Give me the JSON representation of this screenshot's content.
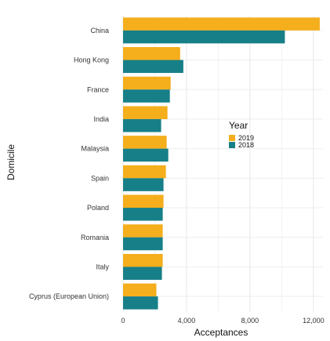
{
  "chart_data": {
    "type": "bar",
    "orientation": "horizontal",
    "categories": [
      "China",
      "Hong Kong",
      "France",
      "India",
      "Malaysia",
      "Spain",
      "Poland",
      "Romania",
      "Italy",
      "Cyprus (European Union)"
    ],
    "series": [
      {
        "name": "2019",
        "color": "#f5ae1c",
        "values": [
          12400,
          3600,
          3000,
          2800,
          2750,
          2700,
          2550,
          2500,
          2500,
          2100
        ]
      },
      {
        "name": "2018",
        "color": "#177f87",
        "values": [
          10200,
          3800,
          2950,
          2400,
          2850,
          2550,
          2500,
          2500,
          2450,
          2200
        ]
      }
    ],
    "xlabel": "Acceptances",
    "ylabel": "Domicile",
    "xlim": [
      0,
      12600
    ],
    "xticks": [
      0,
      4000,
      8000,
      12000
    ],
    "xtick_labels": [
      "0",
      "4,000",
      "8,000",
      "12,000"
    ],
    "legend": {
      "title": "Year",
      "position": "right",
      "items": [
        "2019",
        "2018"
      ]
    },
    "grid": true
  }
}
